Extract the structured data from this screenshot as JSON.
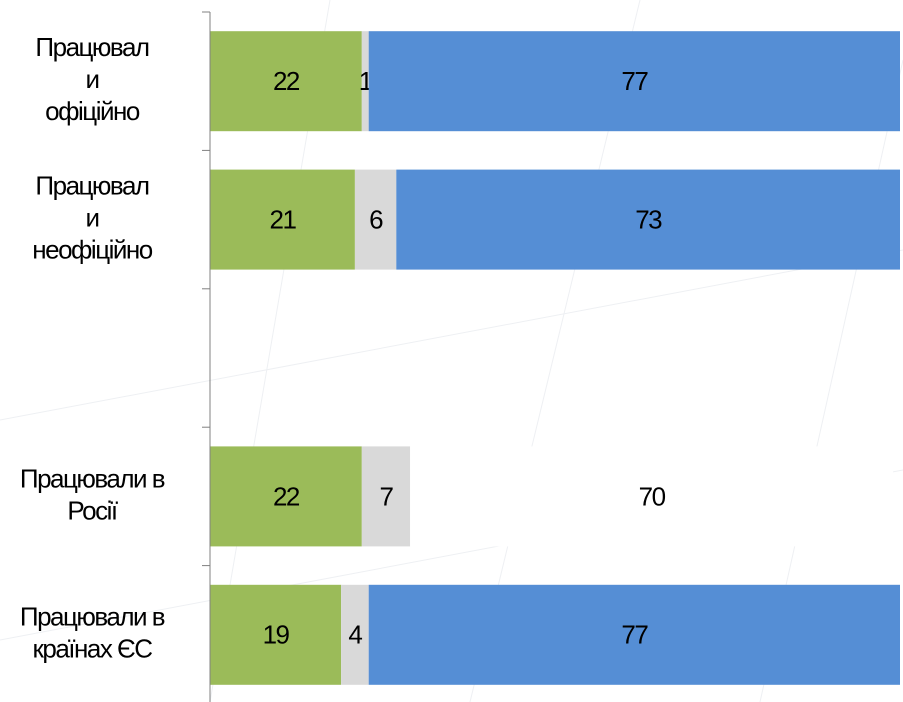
{
  "chart_data": {
    "type": "stacked-bar-horizontal",
    "categories": [
      [
        "Працювал",
        "и",
        "офіційно"
      ],
      [
        "Працювал",
        "и",
        "неофіційно"
      ],
      null,
      [
        "Працювали в",
        "Росії"
      ],
      [
        "Працювали в",
        "країнах ЄС"
      ]
    ],
    "series": [
      {
        "color": "#9bbb59",
        "values": [
          22,
          21,
          null,
          22,
          19
        ]
      },
      {
        "color": "#d9d9d9",
        "values": [
          1,
          6,
          null,
          7,
          4
        ]
      },
      {
        "color": "#558ed5",
        "colors": [
          "#558ed5",
          "#558ed5",
          null,
          "#ffffff",
          "#558ed5"
        ],
        "values": [
          77,
          73,
          null,
          70,
          77
        ]
      }
    ],
    "xlim": [
      0,
      100
    ]
  }
}
